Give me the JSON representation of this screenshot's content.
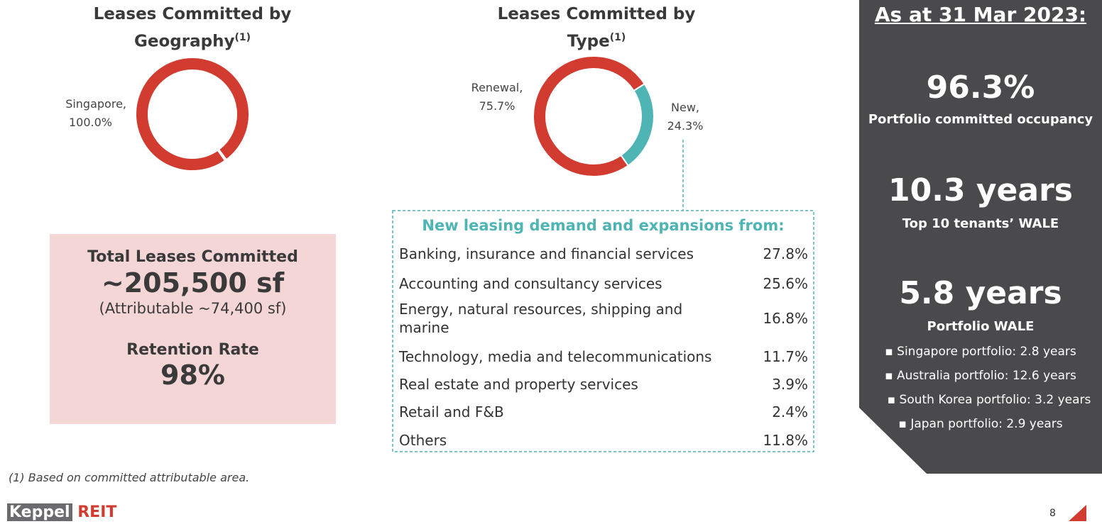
{
  "chart_data": [
    {
      "type": "donut",
      "title": "Leases Committed by Geography",
      "title_note": "(1)",
      "categories": [
        "Singapore,"
      ],
      "values": [
        100.0
      ],
      "value_labels": [
        "100.0%"
      ],
      "colors": [
        "#d23c30"
      ]
    },
    {
      "type": "donut",
      "title": "Leases Committed by Type",
      "title_note": "(1)",
      "categories": [
        "Renewal,",
        "New,"
      ],
      "values": [
        75.7,
        24.3
      ],
      "value_labels": [
        "75.7%",
        "24.3%"
      ],
      "colors": [
        "#d23c30",
        "#4fb4b4"
      ]
    }
  ],
  "summary_box": {
    "title": "Total Leases Committed",
    "value": "~205,500 sf",
    "note": "(Attributable ~74,400 sf)",
    "retention_title": "Retention Rate",
    "retention_value": "98%"
  },
  "table": {
    "title": "New leasing demand and expansions from:",
    "rows": [
      [
        "Banking, insurance and financial services",
        "27.8%"
      ],
      [
        "Accounting and consultancy services",
        "25.6%"
      ],
      [
        "Energy, natural resources, shipping and marine",
        "16.8%"
      ],
      [
        "Technology, media and telecommunications",
        "11.7%"
      ],
      [
        "Real estate and property services",
        "3.9%"
      ],
      [
        "Retail and F&B",
        "2.4%"
      ],
      [
        "Others",
        "11.8%"
      ]
    ]
  },
  "panel": {
    "title": "As at 31 Mar 2023:",
    "metrics": [
      {
        "value": "96.3%",
        "label": "Portfolio committed occupancy"
      },
      {
        "value": "10.3 years",
        "label": "Top 10 tenants’ WALE"
      },
      {
        "value": "5.8 years",
        "label": "Portfolio WALE"
      }
    ],
    "bullets": [
      "Singapore portfolio: 2.8 years",
      "Australia portfolio: 12.6 years",
      "South Korea portfolio: 3.2 years",
      "Japan portfolio: 2.9 years"
    ]
  },
  "footnote": "(1)  Based on committed attributable area.",
  "logo": {
    "left": "Keppel",
    "right": "REIT"
  },
  "page_number": "8"
}
